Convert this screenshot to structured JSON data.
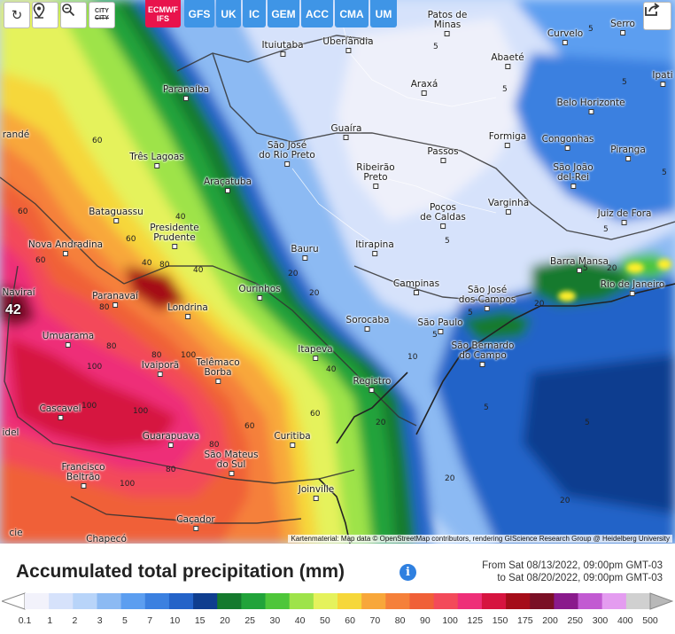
{
  "toolbar": {
    "refresh_label": "↻",
    "locate_label": "⚲",
    "zoom_label": "⊖",
    "city_label": "CITY",
    "city_label_struck": "CITY",
    "models": [
      {
        "line1": "ECMWF",
        "line2": "IFS",
        "active": true
      },
      {
        "label": "GFS"
      },
      {
        "label": "UK"
      },
      {
        "label": "IC"
      },
      {
        "label": "GEM"
      },
      {
        "label": "ACC"
      },
      {
        "label": "CMA"
      },
      {
        "label": "UM"
      }
    ],
    "share_icon": "share-icon"
  },
  "map": {
    "cities": [
      {
        "name": "Patos de\nMinas"
      },
      {
        "name": "Serro"
      },
      {
        "name": "Ituiutaba"
      },
      {
        "name": "Uberlândia"
      },
      {
        "name": "Curvelo"
      },
      {
        "name": "Abaeté"
      },
      {
        "name": "Ipati"
      },
      {
        "name": "Paranaíba"
      },
      {
        "name": "Araxá"
      },
      {
        "name": "Belo Horizonte"
      },
      {
        "name": "randé"
      },
      {
        "name": "Guaíra"
      },
      {
        "name": "Formiga"
      },
      {
        "name": "Congonhas"
      },
      {
        "name": "Piranga"
      },
      {
        "name": "Três Lagoas"
      },
      {
        "name": "São José\ndo Rio Preto"
      },
      {
        "name": "Passos"
      },
      {
        "name": "São João\ndel-Rei"
      },
      {
        "name": "Araçatuba"
      },
      {
        "name": "Ribeirão\nPreto"
      },
      {
        "name": "Bataguassu"
      },
      {
        "name": "Poços\nde Caldas"
      },
      {
        "name": "Varginha"
      },
      {
        "name": "Juiz de Fora"
      },
      {
        "name": "Presidente\nPrudente"
      },
      {
        "name": "Nova Andradina"
      },
      {
        "name": "Bauru"
      },
      {
        "name": "Itirapina"
      },
      {
        "name": "Barra Mansa"
      },
      {
        "name": "Rio de Janeiro"
      },
      {
        "name": "Naviraí"
      },
      {
        "name": "Paranavaí"
      },
      {
        "name": "Ourinhos"
      },
      {
        "name": "Campinas"
      },
      {
        "name": "São José\ndos Campos"
      },
      {
        "name": "Londrina"
      },
      {
        "name": "Sorocaba"
      },
      {
        "name": "São Paulo"
      },
      {
        "name": "Umuarama"
      },
      {
        "name": "São Bernardo\ndo Campo"
      },
      {
        "name": "Itapeva"
      },
      {
        "name": "Ivaiporã"
      },
      {
        "name": "Telêmaco\nBorba"
      },
      {
        "name": "Registro"
      },
      {
        "name": "Cascavel"
      },
      {
        "name": "Guarapuava"
      },
      {
        "name": "Curitiba"
      },
      {
        "name": "idel"
      },
      {
        "name": "São Mateus\ndo Sul"
      },
      {
        "name": "Francisco\nBeltrão"
      },
      {
        "name": "Joinville"
      },
      {
        "name": "Caçador"
      },
      {
        "name": "Chapecó"
      },
      {
        "name": "cie"
      }
    ],
    "value_marker": "42",
    "contour_labels": [
      "60",
      "60",
      "60",
      "60",
      "40",
      "40",
      "40",
      "80",
      "80",
      "80",
      "80",
      "100",
      "100",
      "100",
      "100",
      "100",
      "80",
      "80",
      "60",
      "60",
      "40",
      "20",
      "20",
      "20",
      "20",
      "20",
      "20",
      "20",
      "10",
      "5",
      "5",
      "5",
      "5",
      "5",
      "5",
      "5",
      "5",
      "5",
      "5",
      "5",
      "5"
    ],
    "attribution": "Kartenmaterial: Map data © OpenStreetMap contributors, rendering GIScience Research Group @ Heidelberg University"
  },
  "legend": {
    "title": "Accumulated total precipitation (mm)",
    "info_icon": "info-icon",
    "range_from": "From Sat 08/13/2022, 09:00pm GMT-03",
    "range_to": "to Sat 08/20/2022, 09:00pm GMT-03",
    "ticks": [
      "0.1",
      "1",
      "2",
      "3",
      "5",
      "7",
      "10",
      "15",
      "20",
      "25",
      "30",
      "40",
      "50",
      "60",
      "70",
      "80",
      "90",
      "100",
      "125",
      "150",
      "175",
      "200",
      "250",
      "300",
      "400",
      "500"
    ],
    "colors": [
      "#f2f2fb",
      "#d6e2fb",
      "#b8d4f9",
      "#8cbaf3",
      "#5c9ef0",
      "#3b80e0",
      "#2463c8",
      "#0f3e8f",
      "#157a2e",
      "#21a33a",
      "#4ec63a",
      "#9ee34a",
      "#e5f25c",
      "#f6d73a",
      "#f8a73a",
      "#f5803a",
      "#f06038",
      "#f34a5a",
      "#ee2f78",
      "#d6143f",
      "#a50d19",
      "#7a0f25",
      "#8a1a8c",
      "#c25ad2",
      "#e49cf0",
      "#d0d0d0"
    ]
  }
}
